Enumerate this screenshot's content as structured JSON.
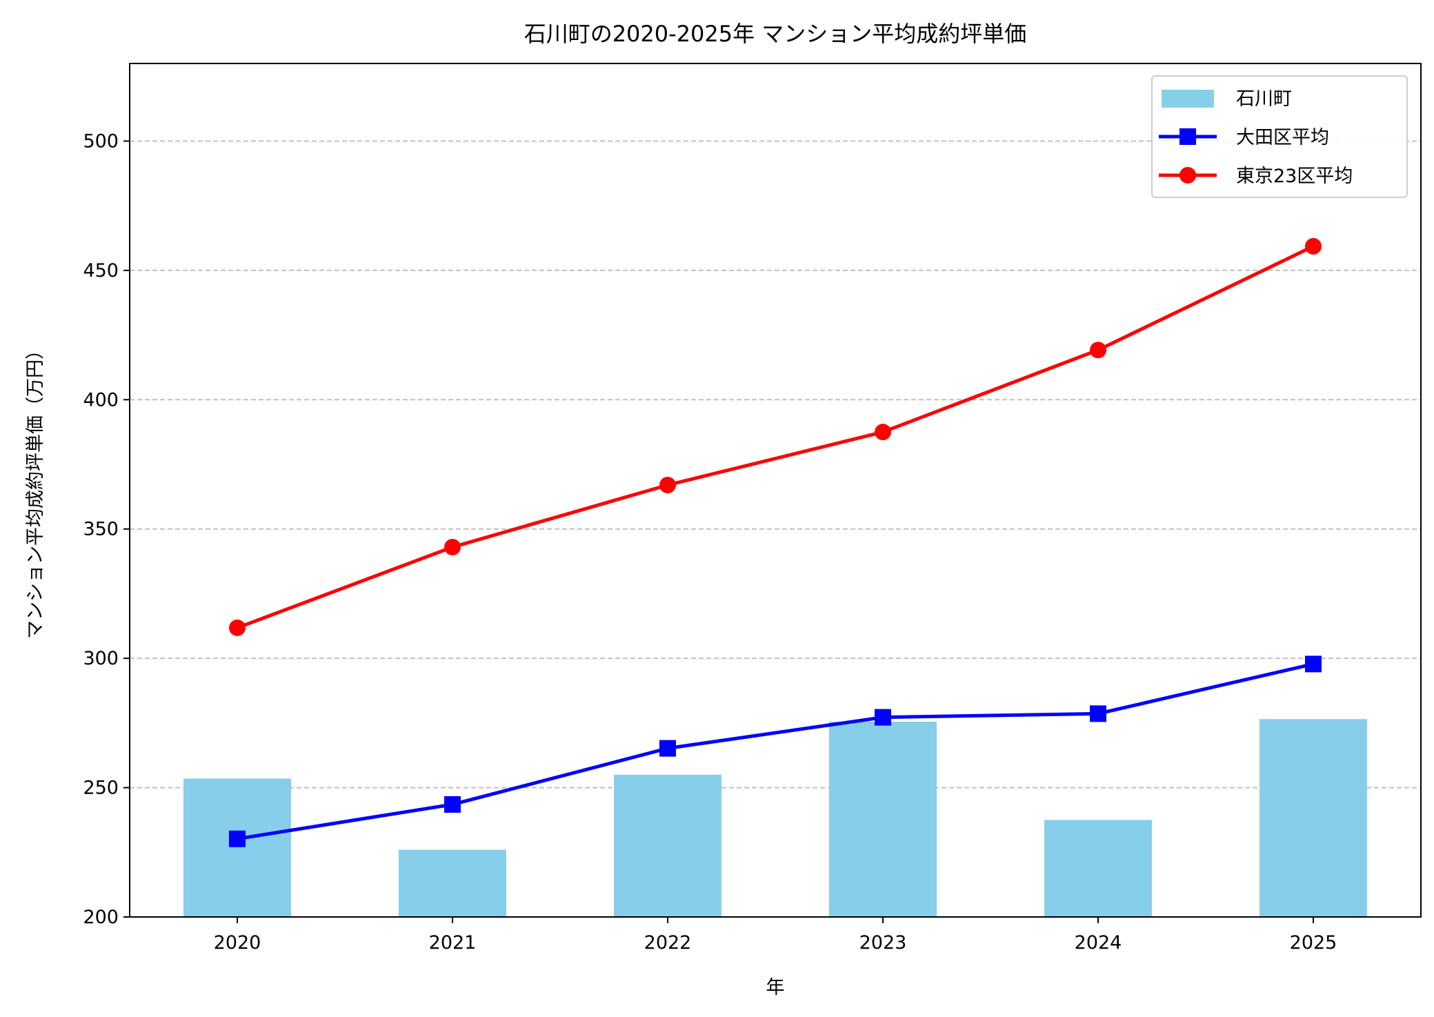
{
  "chart_data": {
    "type": "bar+line",
    "title": "石川町の2020-2025年 マンション平均成約坪単価",
    "xlabel": "年",
    "ylabel": "マンション平均成約坪単価（万円）",
    "categories": [
      "2020",
      "2021",
      "2022",
      "2023",
      "2024",
      "2025"
    ],
    "ylim": [
      200,
      530
    ],
    "yticks": [
      200,
      250,
      300,
      350,
      400,
      450,
      500
    ],
    "grid": "y-dashed",
    "legend_placement": "top-right",
    "series": [
      {
        "name": "石川町",
        "kind": "bar",
        "color": "#87CEEB",
        "values": [
          253.5,
          226,
          255,
          275.5,
          237.5,
          276.5
        ]
      },
      {
        "name": "大田区平均",
        "kind": "line",
        "marker": "square",
        "color": "#0000FF",
        "values": [
          230.2,
          243.5,
          265.2,
          277.2,
          278.6,
          297.8
        ]
      },
      {
        "name": "東京23区平均",
        "kind": "line",
        "marker": "circle",
        "color": "#FF0000",
        "values": [
          311.8,
          343,
          367,
          387.5,
          419.2,
          459.3
        ]
      }
    ]
  }
}
